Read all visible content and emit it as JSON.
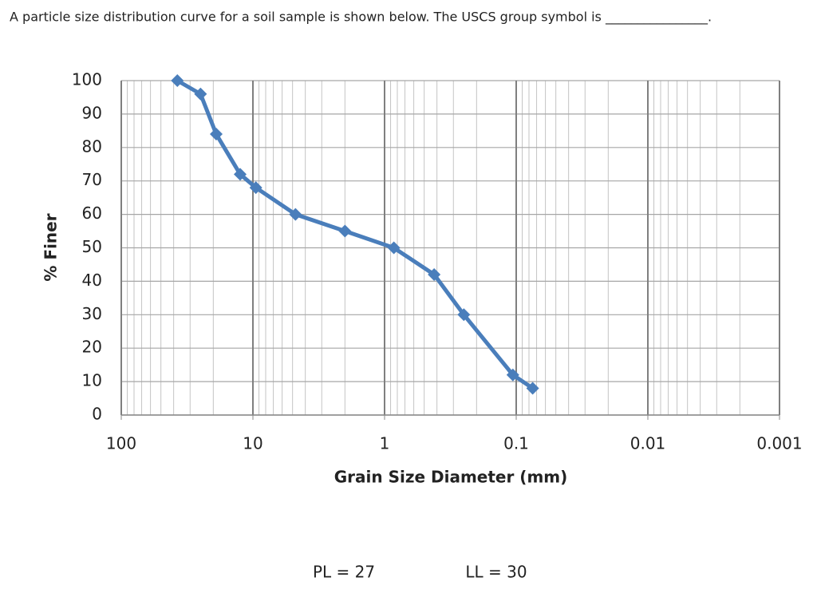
{
  "question": "A particle size distribution curve for a soil sample is shown below.  The USCS group symbol is ________________.",
  "chart_data": {
    "type": "line",
    "xlabel": "Grain Size Diameter (mm)",
    "ylabel": "% Finer",
    "x_log": true,
    "xlim": [
      100,
      0.001
    ],
    "xticks": [
      100,
      10,
      1,
      0.1,
      0.01,
      0.001
    ],
    "ylim": [
      0,
      100
    ],
    "yticks": [
      0,
      10,
      20,
      30,
      40,
      50,
      60,
      70,
      80,
      90,
      100
    ],
    "grid": true,
    "x_minor_grid": true,
    "series": [
      {
        "color": "#4a7ebb",
        "x": [
          37.5,
          25,
          19,
          12.5,
          9.5,
          4.75,
          2.0,
          0.85,
          0.42,
          0.25,
          0.106,
          0.075
        ],
        "values": [
          100,
          96,
          84,
          72,
          68,
          60,
          55,
          50,
          42,
          30,
          12,
          8
        ]
      }
    ]
  },
  "pl": "PL = 27",
  "ll": "LL = 30"
}
